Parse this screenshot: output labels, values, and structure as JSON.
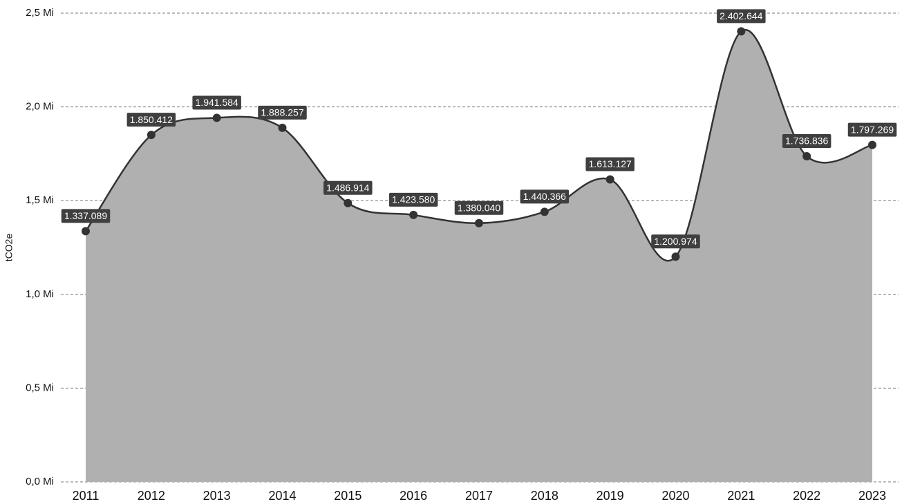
{
  "chart_data": {
    "type": "area",
    "y_label": "tCO2e",
    "categories": [
      "2011",
      "2012",
      "2013",
      "2014",
      "2015",
      "2016",
      "2017",
      "2018",
      "2019",
      "2020",
      "2021",
      "2022",
      "2023"
    ],
    "values": [
      1337089,
      1850412,
      1941584,
      1888257,
      1486914,
      1423580,
      1380040,
      1440366,
      1613127,
      1200974,
      2402644,
      1736836,
      1797269
    ],
    "value_labels": [
      "1.337.089",
      "1.850.412",
      "1.941.584",
      "1.888.257",
      "1.486.914",
      "1.423.580",
      "1.380.040",
      "1.440.366",
      "1.613.127",
      "1.200.974",
      "2.402.644",
      "1.736.836",
      "1.797.269"
    ],
    "color": "#b0b0b0",
    "line_color": "#333333",
    "ylim": [
      0,
      2500000
    ],
    "yticks": [
      {
        "value": 0,
        "label": "0,0 Mi"
      },
      {
        "value": 500000,
        "label": "0,5 Mi"
      },
      {
        "value": 1000000,
        "label": "1,0 Mi"
      },
      {
        "value": 1500000,
        "label": "1,5 Mi"
      },
      {
        "value": 2000000,
        "label": "2,0 Mi"
      },
      {
        "value": 2500000,
        "label": "2,5 Mi"
      }
    ],
    "grid": true
  }
}
